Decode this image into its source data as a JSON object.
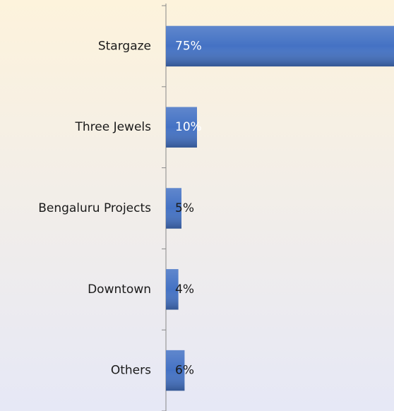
{
  "chart_data": {
    "type": "bar",
    "orientation": "horizontal",
    "categories": [
      "Stargaze",
      "Three Jewels",
      "Bengaluru Projects",
      "Downtown",
      "Others"
    ],
    "values": [
      75,
      10,
      5,
      4,
      6
    ],
    "value_labels": [
      "75%",
      "10%",
      "5%",
      "4%",
      "6%"
    ],
    "color": "#4472c4"
  }
}
